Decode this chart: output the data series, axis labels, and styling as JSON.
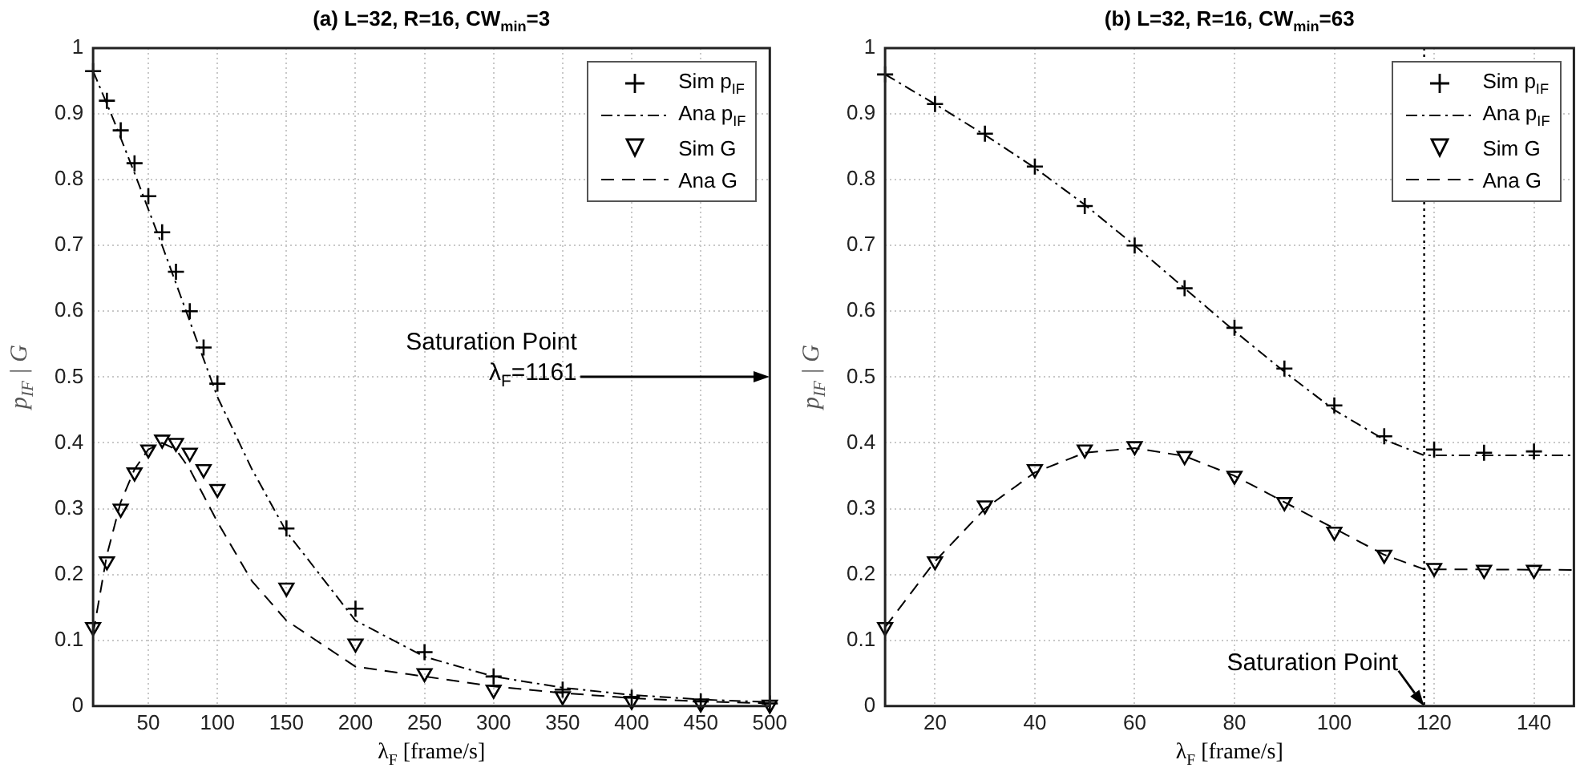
{
  "chart_data": [
    {
      "type": "line",
      "title": "(a)  L=32, R=16, CW$_{min}$=3",
      "xlabel": "λ$_{F}$  [frame/s]",
      "ylabel": "p$_{IF}$  |  G",
      "xlim": [
        10,
        500
      ],
      "xticks": [
        50,
        100,
        150,
        200,
        250,
        300,
        350,
        400,
        450,
        500
      ],
      "ylim": [
        0,
        1
      ],
      "yticks": [
        0,
        0.1,
        0.2,
        0.3,
        0.4,
        0.5,
        0.6,
        0.7,
        0.8,
        0.9,
        1
      ],
      "grid": true,
      "legend": "top right",
      "annotations": [
        "Saturation Point\nλ$_{F}$=1161"
      ],
      "series": [
        {
          "name": "Sim p$_{IF}$",
          "type": "scatter",
          "marker": "cross",
          "color": "#000000",
          "x": [
            10,
            20,
            30,
            40,
            50,
            60,
            70,
            80,
            90,
            100,
            150,
            200,
            250,
            300,
            350,
            400,
            450,
            500
          ],
          "values": [
            0.965,
            0.92,
            0.875,
            0.825,
            0.775,
            0.72,
            0.66,
            0.6,
            0.545,
            0.49,
            0.27,
            0.148,
            0.082,
            0.045,
            0.025,
            0.013,
            0.007,
            0.004
          ]
        },
        {
          "name": "Ana p$_{IF}$",
          "type": "line",
          "line_style": "dashdot",
          "color": "#000000",
          "x": [
            10,
            25,
            40,
            60,
            80,
            100,
            125,
            150,
            200,
            250,
            300,
            350,
            400,
            450,
            500
          ],
          "values": [
            0.965,
            0.89,
            0.81,
            0.7,
            0.585,
            0.47,
            0.36,
            0.265,
            0.13,
            0.075,
            0.045,
            0.028,
            0.017,
            0.01,
            0.006
          ]
        },
        {
          "name": "Sim G",
          "type": "scatter",
          "marker": "triangle",
          "color": "#000000",
          "x": [
            10,
            20,
            30,
            40,
            50,
            60,
            70,
            80,
            90,
            100,
            150,
            200,
            250,
            300,
            350,
            400,
            450,
            500
          ],
          "values": [
            0.12,
            0.22,
            0.3,
            0.355,
            0.39,
            0.405,
            0.4,
            0.385,
            0.36,
            0.33,
            0.18,
            0.095,
            0.05,
            0.025,
            0.015,
            0.008,
            0.004,
            0.002
          ]
        },
        {
          "name": "Ana G",
          "type": "line",
          "line_style": "dashed",
          "color": "#000000",
          "x": [
            10,
            20,
            30,
            40,
            50,
            60,
            70,
            80,
            100,
            125,
            150,
            200,
            250,
            300,
            350,
            400,
            450,
            500
          ],
          "values": [
            0.11,
            0.23,
            0.31,
            0.36,
            0.39,
            0.4,
            0.39,
            0.36,
            0.28,
            0.19,
            0.13,
            0.06,
            0.045,
            0.03,
            0.02,
            0.012,
            0.007,
            0.004
          ]
        }
      ]
    },
    {
      "type": "line",
      "title": "(b)  L=32, R=16, CW$_{min}$=63",
      "xlabel": "λ$_{F}$  [frame/s]",
      "ylabel": "p$_{IF}$  |  G",
      "xlim": [
        10,
        148
      ],
      "xticks": [
        20,
        40,
        60,
        80,
        100,
        120,
        140
      ],
      "ylim": [
        0,
        1
      ],
      "yticks": [
        0,
        0.1,
        0.2,
        0.3,
        0.4,
        0.5,
        0.6,
        0.7,
        0.8,
        0.9,
        1
      ],
      "grid": true,
      "legend": "top right",
      "ref_lines": [
        {
          "axis": "x",
          "value": 118,
          "line_style": "dotted",
          "color": "#000000"
        }
      ],
      "annotations": [
        {
          "text": "Saturation Point",
          "x": 118,
          "y": 0
        }
      ],
      "series": [
        {
          "name": "Sim p$_{IF}$",
          "type": "scatter",
          "marker": "cross",
          "color": "#000000",
          "x": [
            10,
            20,
            30,
            40,
            50,
            60,
            70,
            80,
            90,
            100,
            110,
            120,
            130,
            140
          ],
          "values": [
            0.96,
            0.915,
            0.87,
            0.82,
            0.76,
            0.7,
            0.635,
            0.575,
            0.513,
            0.457,
            0.41,
            0.39,
            0.385,
            0.387
          ]
        },
        {
          "name": "Ana p$_{IF}$",
          "type": "line",
          "line_style": "dashdot",
          "color": "#000000",
          "x": [
            10,
            20,
            30,
            40,
            50,
            60,
            70,
            80,
            90,
            100,
            110,
            118,
            148
          ],
          "values": [
            0.96,
            0.915,
            0.868,
            0.818,
            0.762,
            0.7,
            0.635,
            0.57,
            0.508,
            0.45,
            0.405,
            0.381,
            0.381
          ]
        },
        {
          "name": "Sim G",
          "type": "scatter",
          "marker": "triangle",
          "color": "#000000",
          "x": [
            10,
            20,
            30,
            40,
            50,
            60,
            70,
            80,
            90,
            100,
            110,
            120,
            130,
            140
          ],
          "values": [
            0.12,
            0.22,
            0.305,
            0.36,
            0.39,
            0.395,
            0.38,
            0.35,
            0.31,
            0.265,
            0.23,
            0.21,
            0.207,
            0.207
          ]
        },
        {
          "name": "Ana G",
          "type": "line",
          "line_style": "dashed",
          "color": "#000000",
          "x": [
            10,
            20,
            30,
            40,
            50,
            60,
            70,
            80,
            90,
            100,
            110,
            118,
            148
          ],
          "values": [
            0.12,
            0.22,
            0.3,
            0.355,
            0.385,
            0.392,
            0.38,
            0.35,
            0.31,
            0.27,
            0.23,
            0.208,
            0.207
          ]
        }
      ]
    }
  ]
}
